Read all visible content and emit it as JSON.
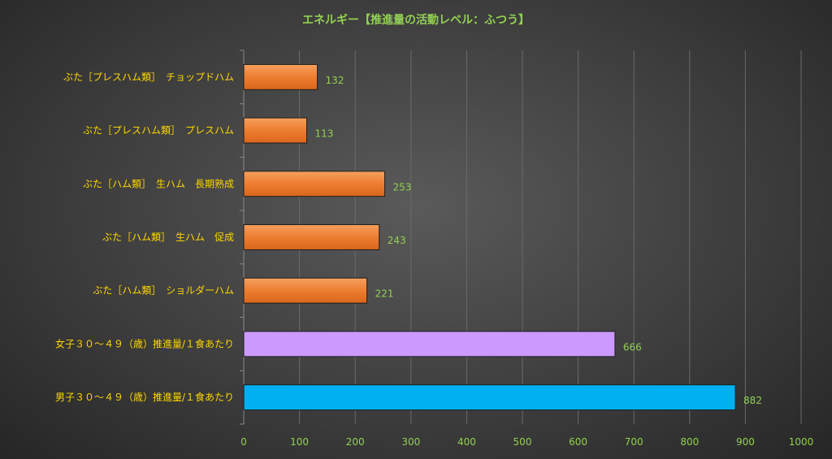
{
  "chart_data": {
    "type": "bar",
    "orientation": "horizontal",
    "title": "エネルギー【推進量の活動レベル：ふつう】",
    "categories": [
      "ぶた［プレスハム類］　チョップドハム",
      "ぶた［プレスハム類］　プレスハム",
      "ぶた［ハム類］　生ハム　長期熟成",
      "ぶた［ハム類］　生ハム　促成",
      "ぶた［ハム類］　ショルダーハム",
      "女子３０～４９（歳）推進量/１食あたり",
      "男子３０～４９（歳）推進量/１食あたり"
    ],
    "values": [
      132,
      113,
      253,
      243,
      221,
      666,
      882
    ],
    "colors": [
      "#ed7d31",
      "#ed7d31",
      "#ed7d31",
      "#ed7d31",
      "#ed7d31",
      "#cc99ff",
      "#00b0f0"
    ],
    "xlim": [
      0,
      1000
    ],
    "xticks": [
      0,
      100,
      200,
      300,
      400,
      500,
      600,
      700,
      800,
      900,
      1000
    ],
    "grid": true,
    "legend": "none"
  }
}
